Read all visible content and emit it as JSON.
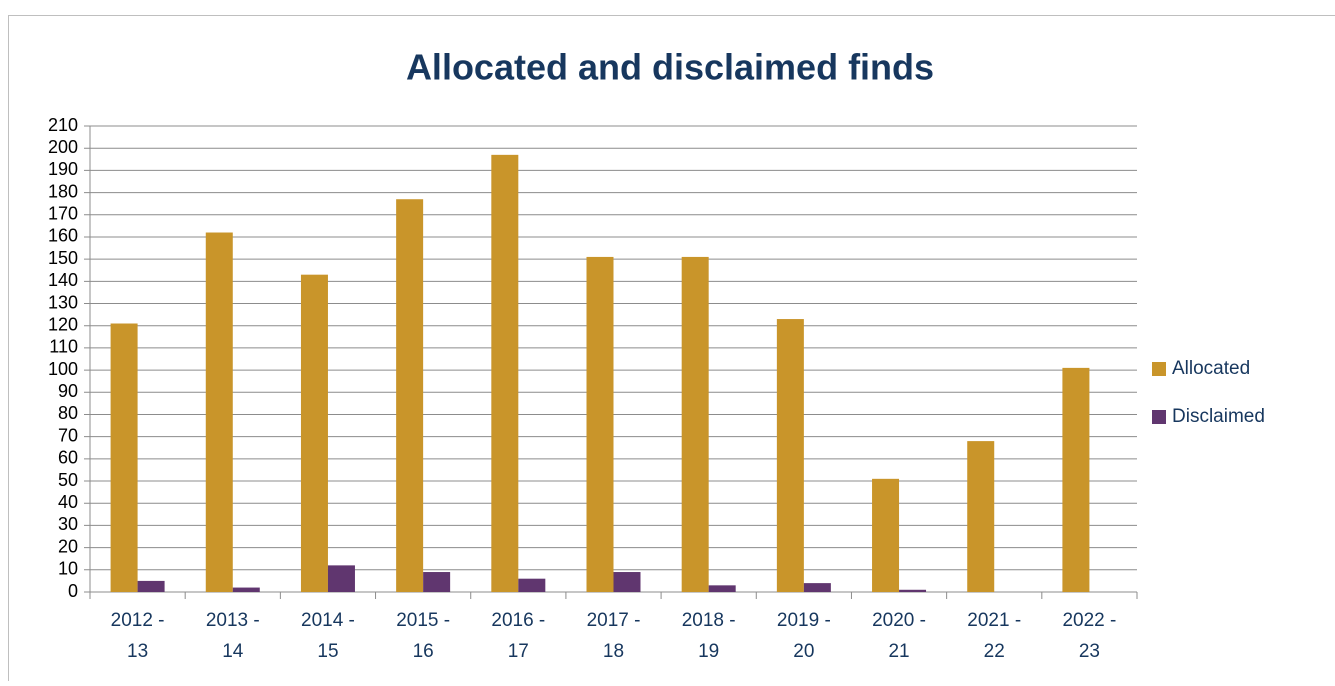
{
  "chart_data": {
    "type": "bar",
    "title": "Allocated and disclaimed finds",
    "categories": [
      "2012 - 13",
      "2013 - 14",
      "2014 - 15",
      "2015 - 16",
      "2016 - 17",
      "2017 - 18",
      "2018 - 19",
      "2019 - 20",
      "2020 - 21",
      "2021 - 22",
      "2022 - 23"
    ],
    "series": [
      {
        "name": "Allocated",
        "color": "#c9952a",
        "values": [
          121,
          162,
          143,
          177,
          197,
          151,
          151,
          123,
          51,
          68,
          101
        ]
      },
      {
        "name": "Disclaimed",
        "color": "#60366f",
        "values": [
          5,
          2,
          12,
          9,
          6,
          9,
          3,
          4,
          1,
          0,
          0
        ]
      }
    ],
    "ylim": [
      0,
      210
    ],
    "yticks": [
      0,
      10,
      20,
      30,
      40,
      50,
      60,
      70,
      80,
      90,
      100,
      110,
      120,
      130,
      140,
      150,
      160,
      170,
      180,
      190,
      200,
      210
    ],
    "grid": true,
    "legend": "right"
  }
}
